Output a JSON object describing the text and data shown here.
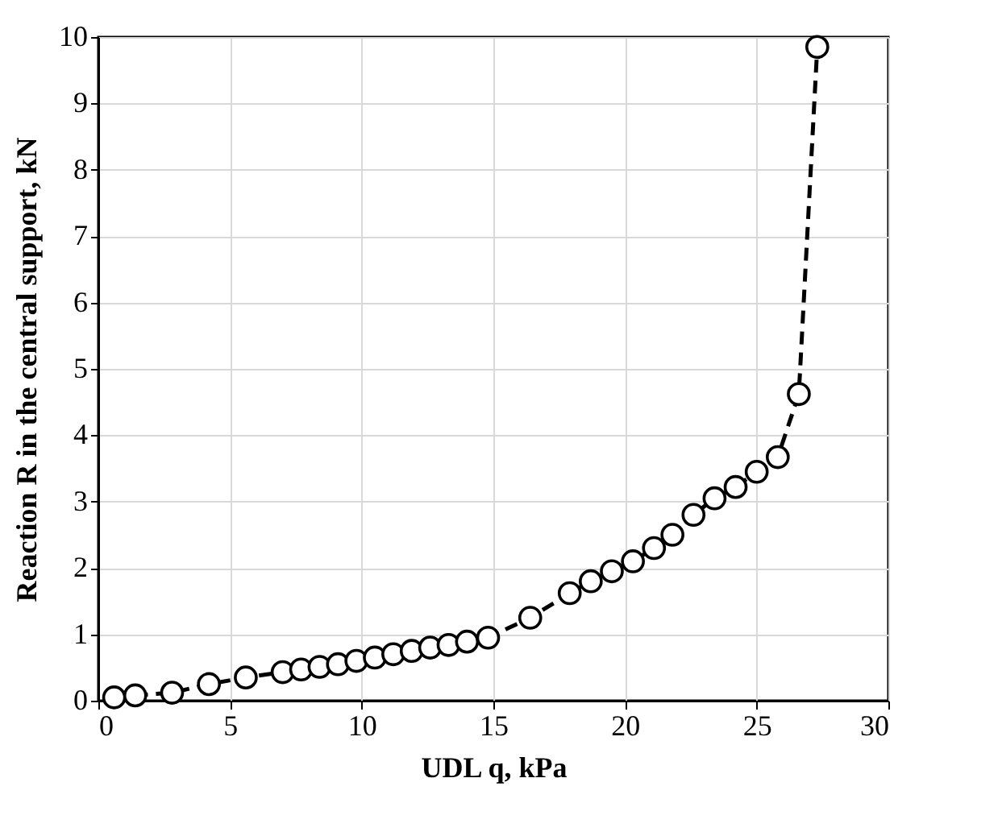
{
  "chart_data": {
    "type": "line",
    "xlabel": "UDL q, kPa",
    "ylabel": "Reaction R in the central support, kN",
    "x": [
      0.6,
      1.4,
      2.8,
      4.2,
      5.6,
      7.0,
      7.7,
      8.4,
      9.1,
      9.8,
      10.5,
      11.2,
      11.9,
      12.6,
      13.3,
      14.0,
      14.8,
      16.4,
      17.9,
      18.7,
      19.5,
      20.3,
      21.1,
      21.8,
      22.6,
      23.4,
      24.2,
      25.0,
      25.8,
      26.6,
      27.3
    ],
    "series": [
      {
        "color": "#000000",
        "values": [
          0.05,
          0.08,
          0.12,
          0.25,
          0.35,
          0.43,
          0.47,
          0.51,
          0.55,
          0.6,
          0.65,
          0.7,
          0.75,
          0.8,
          0.84,
          0.89,
          0.95,
          1.25,
          1.62,
          1.8,
          1.95,
          2.1,
          2.3,
          2.5,
          2.8,
          3.05,
          3.22,
          3.45,
          3.67,
          4.62,
          9.85
        ]
      }
    ],
    "xlim": [
      0,
      30
    ],
    "xticks": [
      0,
      5,
      10,
      15,
      20,
      25,
      30
    ],
    "ylim": [
      0,
      10
    ],
    "yticks": [
      0,
      1,
      2,
      3,
      4,
      5,
      6,
      7,
      8,
      9,
      10
    ],
    "grid": true,
    "marker": "circle",
    "line_style": "dashed"
  }
}
